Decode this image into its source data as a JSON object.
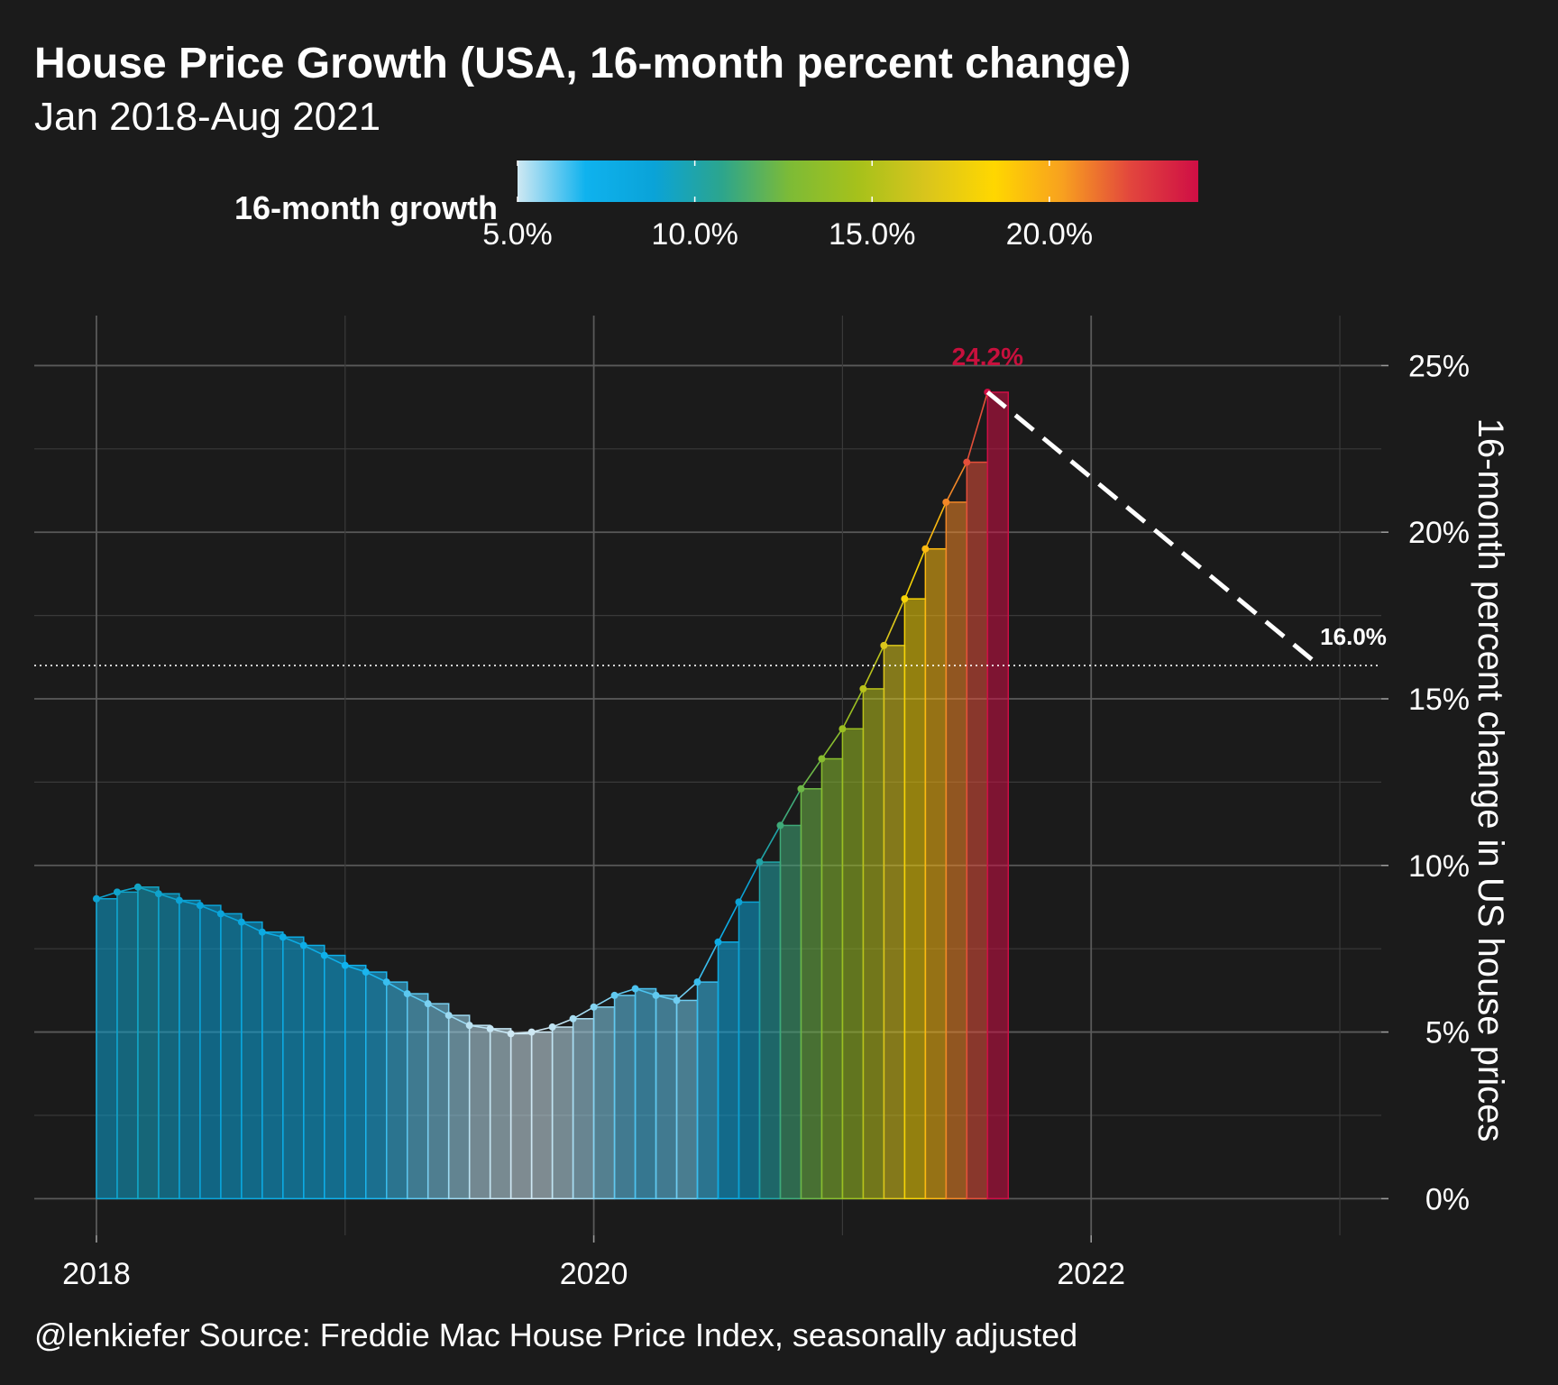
{
  "header": {
    "title": "House Price Growth (USA, 16-month percent change)",
    "subtitle": "Jan 2018-Aug 2021"
  },
  "legend": {
    "title": "16-month growth",
    "labels": [
      "5.0%",
      "10.0%",
      "15.0%",
      "20.0%"
    ],
    "min": 5.0,
    "max": 24.2,
    "colors": [
      "#cfe8f3",
      "#0fb2ee",
      "#0aa3d8",
      "#2ca58d",
      "#7dbb36",
      "#a6c11b",
      "#d9c51c",
      "#ffd700",
      "#f8a11f",
      "#e2463d",
      "#cf0e45"
    ]
  },
  "caption": "@lenkiefer Source: Freddie Mac House Price Index, seasonally adjusted",
  "annotations": {
    "peak_label": "24.2%",
    "target_label": "16.0%"
  },
  "chart_data": {
    "type": "bar",
    "title": "House Price Growth (USA, 16-month percent change)",
    "subtitle": "Jan 2018-Aug 2021",
    "xlabel": "",
    "ylabel": "16-month percent change in US house prices",
    "x_ticks": [
      "2018",
      "2020",
      "2022"
    ],
    "y_ticks": [
      "0%",
      "5%",
      "10%",
      "15%",
      "20%",
      "25%"
    ],
    "ylim": [
      -1.1,
      26.5
    ],
    "xlim": [
      "2017-10",
      "2023-03"
    ],
    "grid": true,
    "y_axis_position": "right",
    "legend_placement": "top",
    "categories": [
      "2018-01",
      "2018-02",
      "2018-03",
      "2018-04",
      "2018-05",
      "2018-06",
      "2018-07",
      "2018-08",
      "2018-09",
      "2018-10",
      "2018-11",
      "2018-12",
      "2019-01",
      "2019-02",
      "2019-03",
      "2019-04",
      "2019-05",
      "2019-06",
      "2019-07",
      "2019-08",
      "2019-09",
      "2019-10",
      "2019-11",
      "2019-12",
      "2020-01",
      "2020-02",
      "2020-03",
      "2020-04",
      "2020-05",
      "2020-06",
      "2020-07",
      "2020-08",
      "2020-09",
      "2020-10",
      "2020-11",
      "2020-12",
      "2021-01",
      "2021-02",
      "2021-03",
      "2021-04",
      "2021-05",
      "2021-06",
      "2021-07",
      "2021-08"
    ],
    "values": [
      9.0,
      9.2,
      9.35,
      9.15,
      8.95,
      8.8,
      8.55,
      8.3,
      8.0,
      7.85,
      7.6,
      7.3,
      7.0,
      6.8,
      6.5,
      6.15,
      5.85,
      5.5,
      5.2,
      5.1,
      4.95,
      5.0,
      5.15,
      5.4,
      5.75,
      6.1,
      6.3,
      6.1,
      5.95,
      6.5,
      7.7,
      8.9,
      10.1,
      11.2,
      12.3,
      13.2,
      14.1,
      15.3,
      16.6,
      18.0,
      19.5,
      20.9,
      22.1,
      24.2
    ],
    "projection": {
      "from": {
        "x": "2021-08",
        "y": 24.2
      },
      "to": {
        "x": "2022-12",
        "y": 16.0
      }
    },
    "reference_line": 16.0
  }
}
